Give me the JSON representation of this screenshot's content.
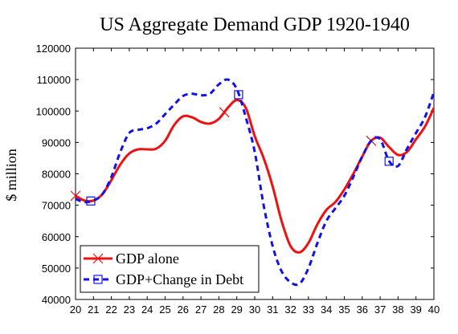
{
  "chart_data": {
    "type": "line",
    "title": "US Aggregate Demand GDP 1920-1940",
    "xlabel": "",
    "ylabel": "$ million",
    "xlim": [
      20,
      40
    ],
    "ylim": [
      40000,
      120000
    ],
    "x_ticks": [
      "20",
      "21",
      "22",
      "23",
      "24",
      "25",
      "26",
      "27",
      "28",
      "29",
      "30",
      "31",
      "32",
      "33",
      "34",
      "35",
      "36",
      "37",
      "38",
      "39",
      "40"
    ],
    "y_ticks": [
      "40000",
      "50000",
      "60000",
      "70000",
      "80000",
      "90000",
      "100000",
      "110000",
      "120000"
    ],
    "grid": false,
    "legend_position": "bottom-left",
    "series": [
      {
        "name": "GDP alone",
        "color": "#ee1111",
        "style": "solid",
        "marker": "x",
        "marker_at": [
          20,
          28.3,
          36.5
        ],
        "x": [
          20,
          20.5,
          21,
          21.5,
          22,
          22.5,
          23,
          23.5,
          24,
          24.5,
          25,
          25.5,
          26,
          26.5,
          27,
          27.5,
          28,
          28.5,
          29,
          29.5,
          30,
          30.5,
          31,
          31.5,
          32,
          32.5,
          33,
          33.5,
          34,
          34.5,
          35,
          35.5,
          36,
          36.5,
          37,
          37.5,
          38,
          38.5,
          39,
          39.5,
          40
        ],
        "y": [
          73000,
          71500,
          71500,
          73500,
          78000,
          83000,
          86500,
          87800,
          87800,
          88000,
          90500,
          95500,
          98300,
          98000,
          96500,
          96000,
          97500,
          101000,
          103500,
          101000,
          92000,
          85000,
          76000,
          65000,
          57000,
          55000,
          58000,
          64000,
          68500,
          71000,
          75000,
          80000,
          85500,
          90500,
          91500,
          88500,
          86000,
          87000,
          91000,
          95000,
          101000
        ]
      },
      {
        "name": "GDP+Change in Debt",
        "color": "#1111ee",
        "style": "dashed",
        "marker": "square",
        "marker_at": [
          20.85,
          29.1,
          37.5
        ],
        "x": [
          20,
          20.5,
          21,
          21.5,
          22,
          22.5,
          23,
          23.5,
          24,
          24.5,
          25,
          25.5,
          26,
          26.5,
          27,
          27.5,
          28,
          28.5,
          29,
          29.5,
          30,
          30.5,
          31,
          31.5,
          32,
          32.5,
          33,
          33.5,
          34,
          34.5,
          35,
          35.5,
          36,
          36.5,
          37,
          37.5,
          38,
          38.5,
          39,
          39.5,
          40
        ],
        "y": [
          72000,
          71000,
          71500,
          73500,
          79000,
          87000,
          93000,
          94000,
          94500,
          96000,
          99000,
          102000,
          104800,
          105500,
          105000,
          105500,
          108500,
          110000,
          107000,
          98000,
          87000,
          70000,
          57000,
          49000,
          45500,
          45000,
          50000,
          58000,
          65000,
          69000,
          73000,
          79000,
          85500,
          90500,
          91000,
          84000,
          82500,
          88000,
          93000,
          98000,
          106000
        ]
      }
    ]
  }
}
